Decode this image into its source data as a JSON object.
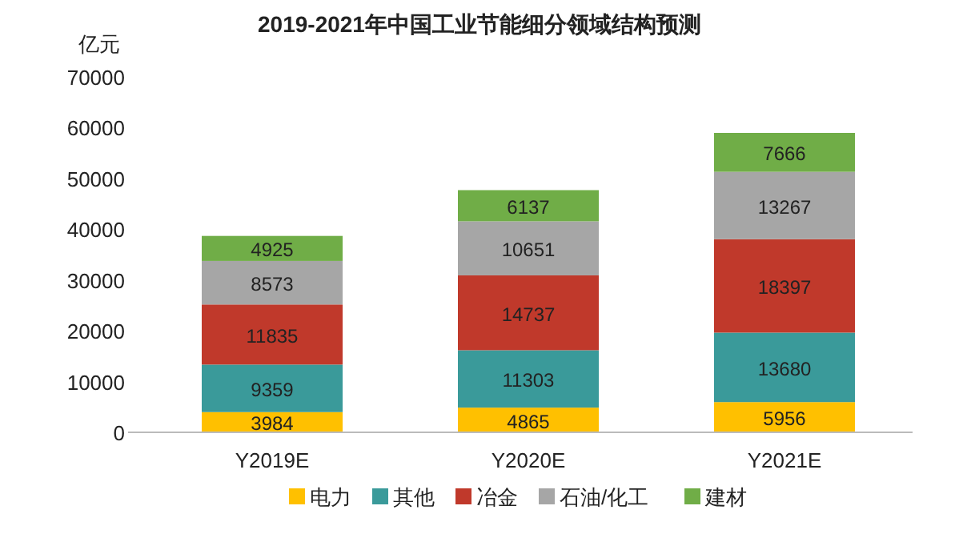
{
  "chart_data": {
    "type": "bar",
    "title": "2019-2021年中国工业节能细分领域结构预测",
    "ylabel": "亿元",
    "categories": [
      "Y2019E",
      "Y2020E",
      "Y2021E"
    ],
    "stacked": true,
    "data_labels": true,
    "legend": "bottom",
    "ylim": [
      0,
      70000
    ],
    "yticks": [
      0,
      10000,
      20000,
      30000,
      40000,
      50000,
      60000,
      70000
    ],
    "series": [
      {
        "name": "电力",
        "color": "#ffc000",
        "values": [
          3984,
          4865,
          5956
        ]
      },
      {
        "name": "其他",
        "color": "#3a9a9a",
        "values": [
          9359,
          11303,
          13680
        ]
      },
      {
        "name": "冶金",
        "color": "#c0392b",
        "values": [
          11835,
          14737,
          18397
        ]
      },
      {
        "name": "石油/化工",
        "color": "#a6a6a6",
        "values": [
          8573,
          10651,
          13267
        ]
      },
      {
        "name": "建材",
        "color": "#70ad47",
        "values": [
          4925,
          6137,
          7666
        ]
      }
    ]
  }
}
